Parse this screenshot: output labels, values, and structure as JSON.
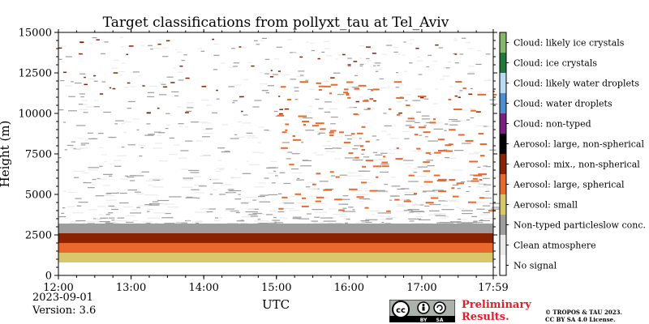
{
  "chart_data": {
    "type": "heatmap",
    "title": "Target classifications from pollyxt_tau at Tel_Aviv",
    "xlabel": "UTC",
    "ylabel": "Height (m)",
    "x_range_hours": [
      12.0,
      17.983
    ],
    "ylim": [
      0,
      15000
    ],
    "x_ticks": [
      {
        "value": 12.0,
        "label": "12:00"
      },
      {
        "value": 13.0,
        "label": "13:00"
      },
      {
        "value": 14.0,
        "label": "14:00"
      },
      {
        "value": 15.0,
        "label": "15:00"
      },
      {
        "value": 16.0,
        "label": "16:00"
      },
      {
        "value": 17.0,
        "label": "17:00"
      },
      {
        "value": 17.983,
        "label": "17:59"
      }
    ],
    "y_ticks": [
      {
        "value": 0,
        "label": "0"
      },
      {
        "value": 2500,
        "label": "2500"
      },
      {
        "value": 5000,
        "label": "5000"
      },
      {
        "value": 7500,
        "label": "7500"
      },
      {
        "value": 10000,
        "label": "10000"
      },
      {
        "value": 12500,
        "label": "12500"
      },
      {
        "value": 15000,
        "label": "15000"
      }
    ],
    "classes": [
      {
        "code": 0,
        "label": "No signal",
        "color": "#ffffff"
      },
      {
        "code": 1,
        "label": "Clean atmosphere",
        "color": "#ebebeb"
      },
      {
        "code": 2,
        "label": "Non-typed particleslow conc.",
        "color": "#9e9e9e"
      },
      {
        "code": 3,
        "label": "Aerosol: small",
        "color": "#d9c76c"
      },
      {
        "code": 4,
        "label": "Aerosol: large, spherical",
        "color": "#e8692b"
      },
      {
        "code": 5,
        "label": "Aerosol: mix., non-spherical",
        "color": "#8b2300"
      },
      {
        "code": 6,
        "label": "Aerosol: large, non-spherical",
        "color": "#000000"
      },
      {
        "code": 7,
        "label": "Cloud: non-typed",
        "color": "#7b1e82"
      },
      {
        "code": 8,
        "label": "Cloud: water droplets",
        "color": "#4a8fcf"
      },
      {
        "code": 9,
        "label": "Cloud: likely water droplets",
        "color": "#b9dcf4"
      },
      {
        "code": 10,
        "label": "Cloud: ice crystals",
        "color": "#1f7a3a"
      },
      {
        "code": 11,
        "label": "Cloud: likely ice crystals",
        "color": "#85b96a"
      }
    ],
    "layers": [
      {
        "class": 3,
        "from_m": 800,
        "to_m": 1400
      },
      {
        "class": 4,
        "from_m": 800,
        "to_m": 2000
      },
      {
        "class": 5,
        "from_m": 2000,
        "to_m": 2600
      },
      {
        "class": 2,
        "from_m": 2600,
        "to_m": 3200
      },
      {
        "class": 1,
        "from_m": 3200,
        "to_m": 15000
      }
    ]
  },
  "meta": {
    "date": "2023-09-01",
    "version": "Version: 3.6"
  },
  "footer": {
    "preliminary_line1": "Preliminary",
    "preliminary_line2": "Results.",
    "copyright_line1": "© TROPOS & TAU 2023.",
    "copyright_line2": "CC BY SA 4.0 License.",
    "license_badge": {
      "cc": "cc",
      "by": "BY",
      "sa": "SA"
    }
  },
  "colors": {
    "preliminary": "#e0202a"
  }
}
